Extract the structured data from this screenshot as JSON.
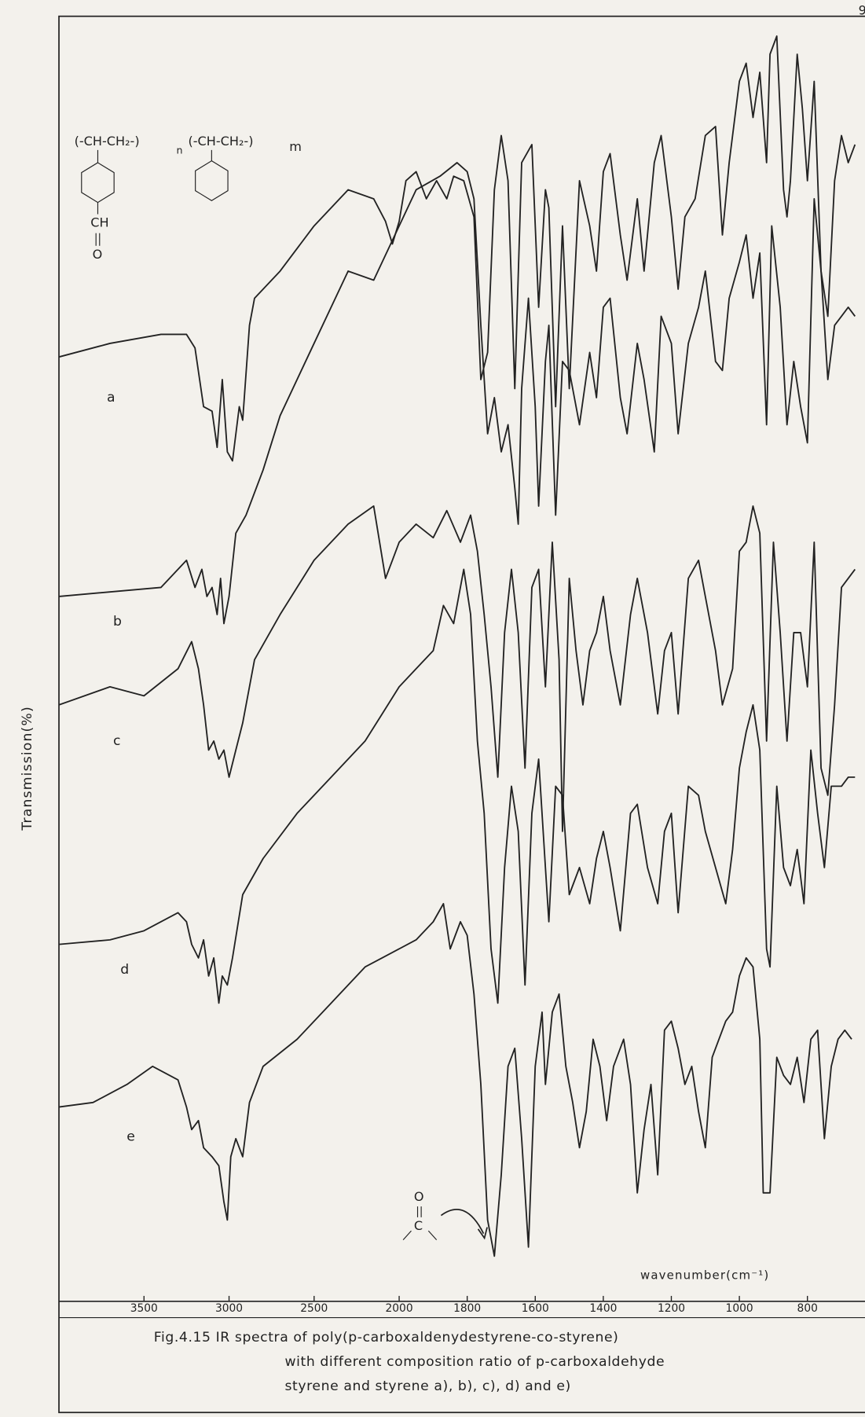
{
  "chart_data": {
    "type": "line",
    "page_number": "9",
    "title_lines": [
      "Fig.4.15  IR spectra of poly(p-carboxaldenydestyrene-co-styrene)",
      "with different composition ratio of p-carboxaldehyde",
      "styrene and styrene   a), b), c), d) and e)"
    ],
    "x_label": "wavenumber(cm⁻¹)",
    "y_label": "Transmission(%)",
    "structure": {
      "unit1": "(-CH-CH₂-)",
      "n": "n",
      "unit2": "(-CH-CH₂-)",
      "m": "m",
      "aldehyde": "CH",
      "oxygen": "O"
    },
    "carbonyl": {
      "oxygen": "O",
      "carbon": "C"
    },
    "xlim": [
      4000,
      650
    ],
    "xscale_change_at": 2000,
    "xscale_ratio": 2,
    "xticks": [
      3500,
      3000,
      2500,
      2000,
      1800,
      1600,
      1400,
      1200,
      1000,
      800
    ],
    "ylim": [
      0,
      1420
    ],
    "series": [
      {
        "name": "a",
        "color": "#222222",
        "x": [
          4000,
          3700,
          3400,
          3250,
          3200,
          3150,
          3100,
          3070,
          3040,
          3010,
          2980,
          2940,
          2920,
          2880,
          2850,
          2700,
          2500,
          2300,
          2150,
          2080,
          2040,
          2000,
          1980,
          1950,
          1920,
          1890,
          1860,
          1840,
          1810,
          1780,
          1760,
          1740,
          1720,
          1700,
          1680,
          1660,
          1640,
          1610,
          1590,
          1570,
          1560,
          1540,
          1520,
          1500,
          1470,
          1440,
          1420,
          1400,
          1380,
          1350,
          1330,
          1300,
          1280,
          1250,
          1230,
          1200,
          1180,
          1160,
          1130,
          1100,
          1070,
          1050,
          1030,
          1000,
          980,
          960,
          940,
          920,
          910,
          890,
          870,
          860,
          850,
          830,
          815,
          800,
          780,
          760,
          740,
          720,
          700,
          680,
          660
        ],
        "values": [
          1045,
          1060,
          1070,
          1070,
          1055,
          990,
          985,
          945,
          1020,
          940,
          930,
          990,
          975,
          1080,
          1110,
          1140,
          1190,
          1230,
          1220,
          1195,
          1170,
          1195,
          1240,
          1250,
          1220,
          1240,
          1220,
          1245,
          1240,
          1200,
          1020,
          1050,
          1230,
          1290,
          1240,
          1010,
          1260,
          1280,
          1100,
          1230,
          1210,
          990,
          1190,
          1010,
          1240,
          1190,
          1140,
          1250,
          1270,
          1180,
          1130,
          1220,
          1140,
          1260,
          1290,
          1200,
          1120,
          1200,
          1220,
          1290,
          1300,
          1180,
          1260,
          1350,
          1370,
          1310,
          1360,
          1260,
          1380,
          1400,
          1230,
          1200,
          1240,
          1380,
          1320,
          1240,
          1350,
          1140,
          1090,
          1240,
          1290,
          1260,
          1280
        ]
      },
      {
        "name": "b",
        "color": "#222222",
        "x": [
          4000,
          3400,
          3250,
          3200,
          3160,
          3130,
          3100,
          3070,
          3050,
          3030,
          3000,
          2960,
          2900,
          2800,
          2700,
          2500,
          2300,
          2150,
          2000,
          1950,
          1880,
          1830,
          1800,
          1780,
          1760,
          1740,
          1720,
          1700,
          1680,
          1660,
          1650,
          1640,
          1620,
          1600,
          1590,
          1570,
          1560,
          1540,
          1520,
          1500,
          1470,
          1440,
          1420,
          1400,
          1380,
          1350,
          1330,
          1300,
          1280,
          1250,
          1230,
          1200,
          1180,
          1150,
          1120,
          1100,
          1070,
          1050,
          1030,
          1000,
          980,
          960,
          940,
          920,
          905,
          880,
          860,
          840,
          820,
          800,
          780,
          760,
          740,
          720,
          700,
          680,
          660
        ],
        "values": [
          780,
          790,
          820,
          790,
          810,
          780,
          790,
          760,
          800,
          750,
          780,
          850,
          870,
          920,
          980,
          1060,
          1140,
          1130,
          1190,
          1230,
          1245,
          1260,
          1250,
          1220,
          1080,
          960,
          1000,
          940,
          970,
          900,
          860,
          1010,
          1110,
          990,
          880,
          1040,
          1080,
          870,
          1040,
          1030,
          970,
          1050,
          1000,
          1100,
          1110,
          1000,
          960,
          1060,
          1020,
          940,
          1090,
          1060,
          960,
          1060,
          1100,
          1140,
          1040,
          1030,
          1110,
          1150,
          1180,
          1110,
          1160,
          970,
          1190,
          1100,
          970,
          1040,
          990,
          950,
          1220,
          1140,
          1020,
          1080,
          1090,
          1100,
          1090
        ]
      },
      {
        "name": "c",
        "color": "#222222",
        "x": [
          4000,
          3700,
          3500,
          3300,
          3220,
          3180,
          3150,
          3120,
          3090,
          3060,
          3030,
          3000,
          2960,
          2920,
          2850,
          2700,
          2500,
          2300,
          2150,
          2080,
          2040,
          2000,
          1950,
          1900,
          1860,
          1820,
          1790,
          1770,
          1750,
          1730,
          1710,
          1690,
          1670,
          1650,
          1630,
          1610,
          1590,
          1570,
          1550,
          1530,
          1520,
          1500,
          1480,
          1460,
          1440,
          1420,
          1400,
          1380,
          1350,
          1320,
          1300,
          1270,
          1240,
          1220,
          1200,
          1180,
          1150,
          1120,
          1100,
          1070,
          1050,
          1020,
          1000,
          980,
          960,
          940,
          920,
          900,
          880,
          860,
          840,
          820,
          800,
          780,
          760,
          740,
          720,
          700,
          680,
          660
        ],
        "values": [
          660,
          680,
          670,
          700,
          730,
          700,
          660,
          610,
          620,
          600,
          610,
          580,
          610,
          640,
          710,
          760,
          820,
          860,
          880,
          800,
          820,
          840,
          860,
          845,
          875,
          840,
          870,
          830,
          760,
          680,
          580,
          740,
          810,
          740,
          590,
          790,
          810,
          680,
          840,
          710,
          520,
          800,
          720,
          660,
          720,
          740,
          780,
          720,
          660,
          760,
          800,
          740,
          650,
          720,
          740,
          650,
          800,
          820,
          780,
          720,
          660,
          700,
          830,
          840,
          880,
          850,
          620,
          840,
          740,
          620,
          740,
          740,
          680,
          840,
          590,
          560,
          660,
          790,
          800,
          810
        ]
      },
      {
        "name": "d",
        "color": "#222222",
        "x": [
          4000,
          3700,
          3500,
          3300,
          3250,
          3220,
          3180,
          3150,
          3120,
          3090,
          3060,
          3040,
          3010,
          2980,
          2920,
          2800,
          2600,
          2400,
          2200,
          2100,
          2000,
          1950,
          1900,
          1870,
          1840,
          1810,
          1790,
          1770,
          1750,
          1730,
          1710,
          1690,
          1670,
          1650,
          1630,
          1610,
          1590,
          1570,
          1560,
          1540,
          1520,
          1500,
          1470,
          1440,
          1420,
          1400,
          1380,
          1350,
          1320,
          1300,
          1270,
          1240,
          1220,
          1200,
          1180,
          1150,
          1120,
          1100,
          1070,
          1040,
          1020,
          1000,
          980,
          960,
          940,
          920,
          910,
          890,
          870,
          850,
          830,
          810,
          790,
          770,
          750,
          730,
          700,
          680,
          660
        ],
        "values": [
          395,
          400,
          410,
          430,
          420,
          395,
          380,
          400,
          360,
          380,
          330,
          360,
          350,
          380,
          450,
          490,
          540,
          580,
          620,
          650,
          680,
          700,
          720,
          770,
          750,
          810,
          760,
          620,
          540,
          390,
          330,
          480,
          570,
          520,
          350,
          540,
          600,
          480,
          420,
          570,
          560,
          450,
          480,
          440,
          490,
          520,
          480,
          410,
          540,
          550,
          480,
          440,
          520,
          540,
          430,
          570,
          560,
          520,
          480,
          440,
          500,
          590,
          630,
          660,
          610,
          390,
          370,
          570,
          480,
          460,
          500,
          440,
          610,
          540,
          480,
          570,
          570,
          580,
          580
        ]
      },
      {
        "name": "e",
        "color": "#222222",
        "x": [
          4000,
          3800,
          3600,
          3450,
          3300,
          3250,
          3220,
          3180,
          3150,
          3100,
          3060,
          3030,
          3010,
          2990,
          2960,
          2920,
          2880,
          2800,
          2600,
          2400,
          2200,
          2100,
          2000,
          1950,
          1900,
          1870,
          1850,
          1820,
          1800,
          1780,
          1760,
          1740,
          1720,
          1700,
          1680,
          1660,
          1640,
          1620,
          1600,
          1580,
          1570,
          1550,
          1530,
          1510,
          1490,
          1470,
          1450,
          1430,
          1410,
          1390,
          1370,
          1340,
          1320,
          1300,
          1280,
          1260,
          1240,
          1220,
          1200,
          1180,
          1160,
          1140,
          1120,
          1100,
          1080,
          1060,
          1040,
          1020,
          1000,
          980,
          960,
          940,
          930,
          910,
          890,
          870,
          850,
          830,
          810,
          790,
          770,
          750,
          730,
          710,
          690,
          670
        ],
        "values": [
          215,
          220,
          240,
          260,
          245,
          215,
          190,
          200,
          170,
          160,
          150,
          110,
          90,
          160,
          180,
          160,
          220,
          260,
          290,
          330,
          370,
          380,
          390,
          400,
          420,
          440,
          390,
          420,
          405,
          340,
          240,
          90,
          50,
          140,
          260,
          280,
          180,
          60,
          260,
          320,
          240,
          320,
          340,
          260,
          220,
          170,
          210,
          290,
          260,
          200,
          260,
          290,
          240,
          120,
          190,
          240,
          140,
          300,
          310,
          280,
          240,
          260,
          210,
          170,
          270,
          290,
          310,
          320,
          360,
          380,
          370,
          290,
          120,
          120,
          270,
          250,
          240,
          270,
          220,
          290,
          300,
          180,
          260,
          290,
          300,
          290
        ]
      }
    ]
  }
}
